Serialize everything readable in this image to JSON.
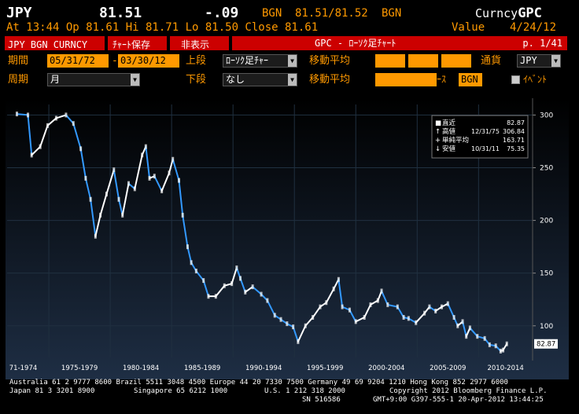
{
  "header": {
    "ticker": "JPY",
    "price": "81.51",
    "change": "-.09",
    "source": "BGN",
    "bid_ask": "81.51/81.52",
    "source2": "BGN",
    "curncy_prefix": "Curncy",
    "curncy_code": "GPC",
    "time_line": "At 13:44 Op 81.61 Hi 81.71 Lo 81.50 Close 81.61",
    "value_label": "Value",
    "value_date": "4/24/12"
  },
  "toolbar": {
    "security": "JPY BGN CURNCY",
    "save_chart": "ﾁｬｰﾄ保存",
    "hide": "非表示",
    "title": "GPC - ﾛｰｿｸ足ﾁｬｰﾄ",
    "page": "p. 1/41"
  },
  "settings": {
    "period_label": "期間",
    "start_date": "05/31/72",
    "dash": "-",
    "end_date": "03/30/12",
    "upper_label": "上段",
    "upper_value": "ﾛｰｿｸ足ﾁｬｰ",
    "ma_label": "移動平均",
    "currency_label": "通貨",
    "currency_value": "JPY",
    "cycle_label": "周期",
    "cycle_value": "月",
    "lower_label": "下段",
    "lower_value": "なし",
    "ma_label2": "移動平均",
    "source_label": "ｿｰｽ",
    "source_value": "BGN",
    "event_label": "ｲﾍﾞﾝﾄ"
  },
  "chart_data": {
    "type": "line",
    "x_tick_labels": [
      "71-1974",
      "1975-1979",
      "1980-1984",
      "1985-1989",
      "1990-1994",
      "1995-1999",
      "2000-2004",
      "2005-2009",
      "2010-2014"
    ],
    "y_ticks": [
      300,
      250,
      200,
      150,
      100
    ],
    "ylim": [
      70,
      310
    ],
    "last_value_label": "82.87",
    "legend": [
      {
        "key": "■",
        "label": "直近",
        "date": "",
        "value": "82.87"
      },
      {
        "key": "↑",
        "label": "高値",
        "date": "12/31/75",
        "value": "306.84"
      },
      {
        "key": "+",
        "label": "単純平均",
        "date": "",
        "value": "163.71"
      },
      {
        "key": "↓",
        "label": "安値",
        "date": "10/31/11",
        "value": "75.35"
      }
    ],
    "colors": {
      "up": "#ffffff",
      "down": "#3399ff",
      "grid": "#203040"
    },
    "series": [
      {
        "values": [
          {
            "x": 1972.4,
            "y": 301
          },
          {
            "x": 1973.3,
            "y": 300
          },
          {
            "x": 1973.6,
            "y": 262
          },
          {
            "x": 1974.3,
            "y": 270
          },
          {
            "x": 1974.9,
            "y": 290
          },
          {
            "x": 1975.6,
            "y": 297
          },
          {
            "x": 1976.4,
            "y": 300
          },
          {
            "x": 1977.0,
            "y": 292
          },
          {
            "x": 1977.6,
            "y": 268
          },
          {
            "x": 1978.0,
            "y": 240
          },
          {
            "x": 1978.4,
            "y": 220
          },
          {
            "x": 1978.8,
            "y": 185
          },
          {
            "x": 1979.2,
            "y": 205
          },
          {
            "x": 1979.7,
            "y": 225
          },
          {
            "x": 1980.3,
            "y": 248
          },
          {
            "x": 1980.7,
            "y": 220
          },
          {
            "x": 1981.0,
            "y": 205
          },
          {
            "x": 1981.5,
            "y": 235
          },
          {
            "x": 1982.0,
            "y": 230
          },
          {
            "x": 1982.6,
            "y": 262
          },
          {
            "x": 1982.9,
            "y": 270
          },
          {
            "x": 1983.2,
            "y": 240
          },
          {
            "x": 1983.6,
            "y": 242
          },
          {
            "x": 1984.2,
            "y": 228
          },
          {
            "x": 1984.8,
            "y": 245
          },
          {
            "x": 1985.1,
            "y": 258
          },
          {
            "x": 1985.6,
            "y": 238
          },
          {
            "x": 1985.9,
            "y": 205
          },
          {
            "x": 1986.3,
            "y": 175
          },
          {
            "x": 1986.6,
            "y": 160
          },
          {
            "x": 1987.0,
            "y": 152
          },
          {
            "x": 1987.6,
            "y": 143
          },
          {
            "x": 1988.0,
            "y": 128
          },
          {
            "x": 1988.6,
            "y": 128
          },
          {
            "x": 1989.3,
            "y": 138
          },
          {
            "x": 1989.9,
            "y": 140
          },
          {
            "x": 1990.3,
            "y": 155
          },
          {
            "x": 1990.6,
            "y": 145
          },
          {
            "x": 1991.0,
            "y": 132
          },
          {
            "x": 1991.6,
            "y": 137
          },
          {
            "x": 1992.3,
            "y": 130
          },
          {
            "x": 1992.8,
            "y": 124
          },
          {
            "x": 1993.4,
            "y": 110
          },
          {
            "x": 1993.9,
            "y": 106
          },
          {
            "x": 1994.4,
            "y": 102
          },
          {
            "x": 1994.9,
            "y": 99
          },
          {
            "x": 1995.3,
            "y": 85
          },
          {
            "x": 1995.9,
            "y": 100
          },
          {
            "x": 1996.5,
            "y": 108
          },
          {
            "x": 1997.1,
            "y": 118
          },
          {
            "x": 1997.6,
            "y": 122
          },
          {
            "x": 1998.2,
            "y": 135
          },
          {
            "x": 1998.6,
            "y": 144
          },
          {
            "x": 1998.9,
            "y": 118
          },
          {
            "x": 1999.5,
            "y": 115
          },
          {
            "x": 2000.0,
            "y": 104
          },
          {
            "x": 2000.7,
            "y": 108
          },
          {
            "x": 2001.2,
            "y": 120
          },
          {
            "x": 2001.8,
            "y": 124
          },
          {
            "x": 2002.1,
            "y": 133
          },
          {
            "x": 2002.6,
            "y": 120
          },
          {
            "x": 2003.4,
            "y": 118
          },
          {
            "x": 2003.9,
            "y": 108
          },
          {
            "x": 2004.3,
            "y": 107
          },
          {
            "x": 2004.9,
            "y": 103
          },
          {
            "x": 2005.6,
            "y": 112
          },
          {
            "x": 2006.0,
            "y": 118
          },
          {
            "x": 2006.5,
            "y": 114
          },
          {
            "x": 2007.0,
            "y": 118
          },
          {
            "x": 2007.5,
            "y": 121
          },
          {
            "x": 2008.0,
            "y": 108
          },
          {
            "x": 2008.3,
            "y": 100
          },
          {
            "x": 2008.7,
            "y": 104
          },
          {
            "x": 2009.0,
            "y": 90
          },
          {
            "x": 2009.3,
            "y": 98
          },
          {
            "x": 2009.9,
            "y": 90
          },
          {
            "x": 2010.5,
            "y": 88
          },
          {
            "x": 2010.9,
            "y": 82
          },
          {
            "x": 2011.4,
            "y": 81
          },
          {
            "x": 2011.8,
            "y": 76
          },
          {
            "x": 2012.0,
            "y": 77
          },
          {
            "x": 2012.3,
            "y": 82.87
          }
        ]
      }
    ]
  },
  "footer": {
    "line1": "Australia 61 2 9777 8600 Brazil 5511 3048 4500 Europe 44 20 7330 7500 Germany 49 69 9204 1210 Hong Kong 852 2977 6000",
    "line2a": "Japan 81 3 3201 8900",
    "line2b": "Singapore 65 6212 1000",
    "line2c": "U.S. 1 212 318 2000",
    "line2d": "Copyright 2012 Bloomberg Finance L.P.",
    "line3a": "SN 516586",
    "line3b": "GMT+9:00 G397-555-1 20-Apr-2012 13:44:25"
  }
}
